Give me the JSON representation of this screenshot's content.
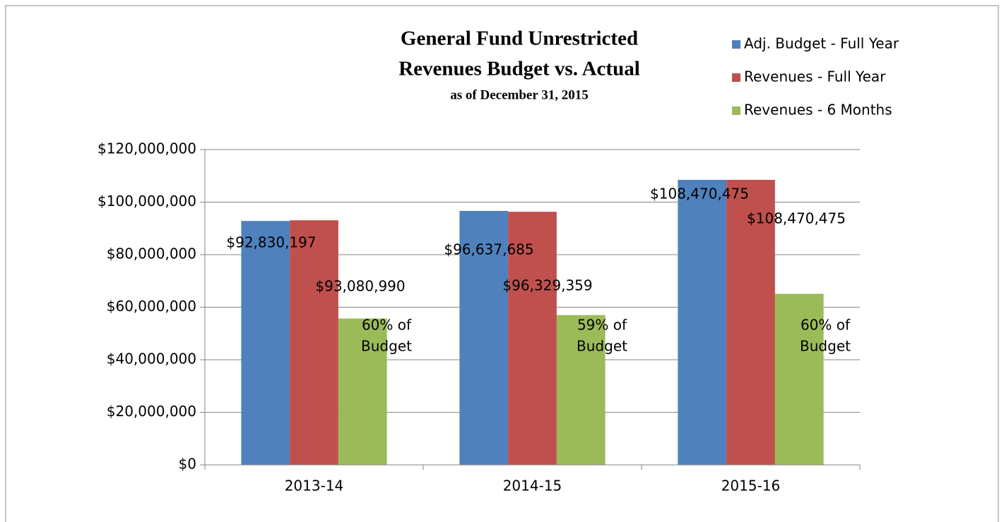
{
  "chart_data": {
    "type": "bar",
    "title": [
      "General Fund Unrestricted",
      "Revenues Budget vs. Actual"
    ],
    "subtitle": "as of December 31, 2015",
    "categories": [
      "2013-14",
      "2014-15",
      "2015-16"
    ],
    "series": [
      {
        "name": "Adj. Budget - Full Year",
        "color": "#4f81bd",
        "values": [
          92830197,
          96637685,
          108470475
        ],
        "value_labels": [
          "$92,830,197",
          "$96,637,685",
          "$108,470,475"
        ]
      },
      {
        "name": "Revenues - Full Year",
        "color": "#c0504d",
        "values": [
          93080990,
          96329359,
          108470475
        ],
        "value_labels": [
          "$93,080,990",
          "$96,329,359",
          "$108,470,475"
        ]
      },
      {
        "name": "Revenues - 6 Months",
        "color": "#9bbb59",
        "values": [
          55700000,
          57000000,
          65100000
        ]
      }
    ],
    "annotations": [
      [
        "60% of",
        "Budget"
      ],
      [
        "59% of",
        "Budget"
      ],
      [
        "60% of",
        "Budget"
      ]
    ],
    "ylim": [
      0,
      120000000
    ],
    "yticks": [
      {
        "value": 0,
        "label": "$0"
      },
      {
        "value": 20000000,
        "label": "$20,000,000"
      },
      {
        "value": 40000000,
        "label": "$40,000,000"
      },
      {
        "value": 60000000,
        "label": "$60,000,000"
      },
      {
        "value": 80000000,
        "label": "$80,000,000"
      },
      {
        "value": 100000000,
        "label": "$100,000,000"
      },
      {
        "value": 120000000,
        "label": "$120,000,000"
      }
    ],
    "grid": true,
    "legend": "top-right"
  }
}
